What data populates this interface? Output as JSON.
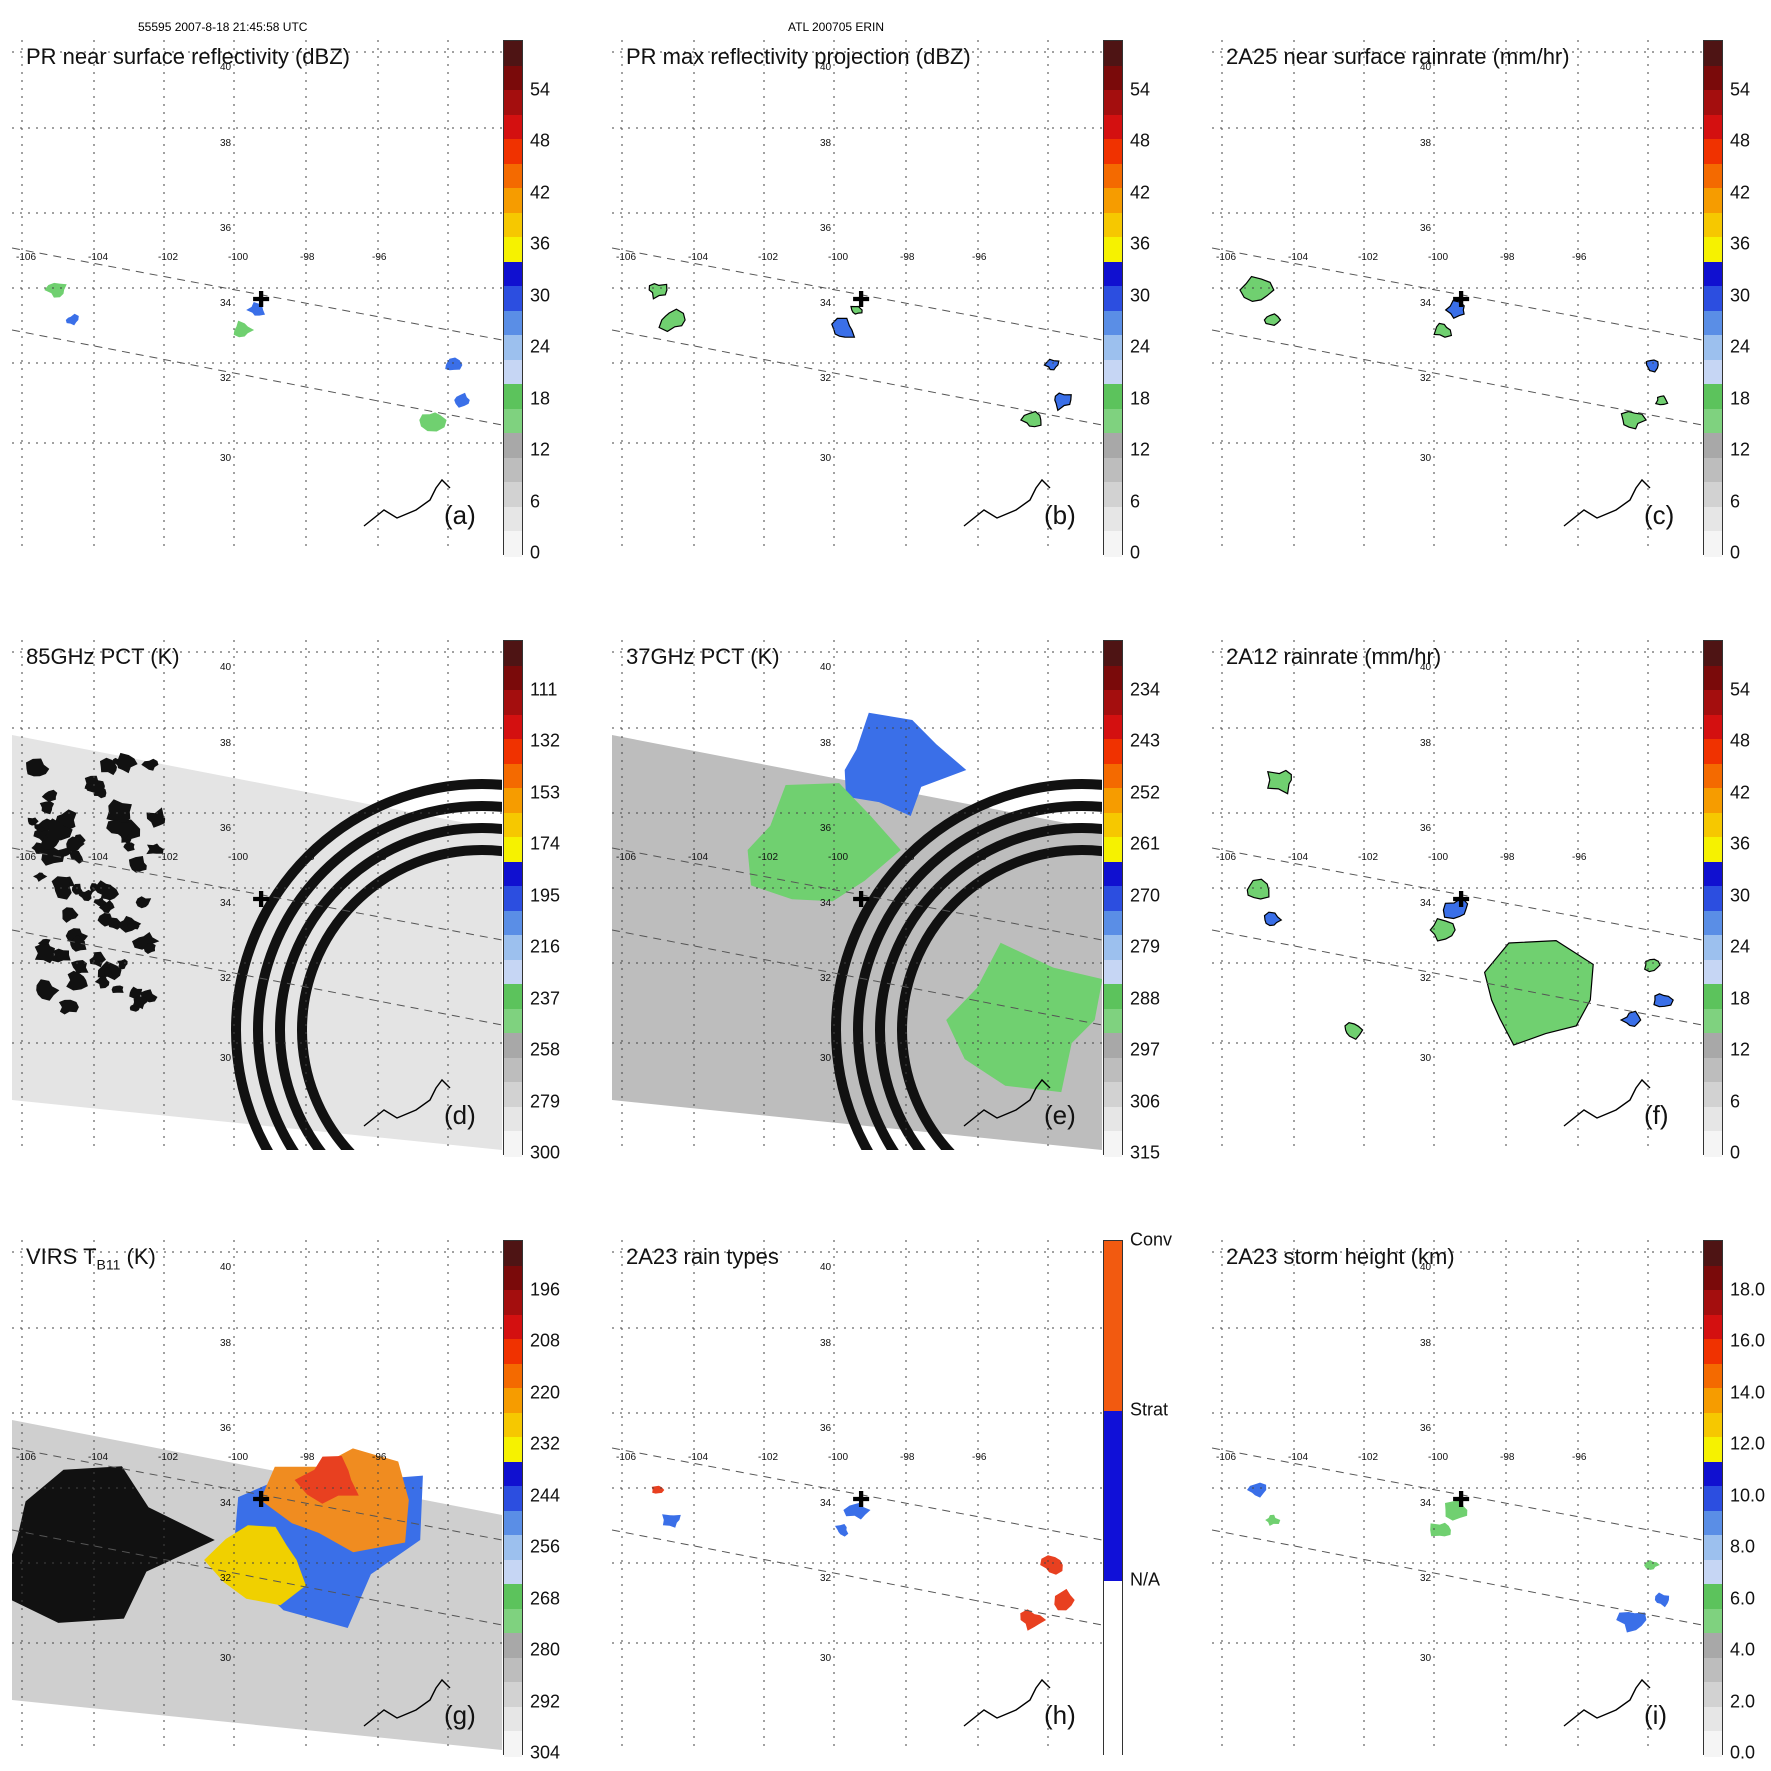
{
  "header": {
    "left": "55595 2007-8-18 21:45:58 UTC",
    "center": "ATL 200705 ERIN"
  },
  "colors": {
    "scale": [
      "#f5f5f5",
      "#e6e6e6",
      "#d2d2d2",
      "#bdbdbd",
      "#a8a8a8",
      "#7fd27f",
      "#5cc35c",
      "#c6d6f4",
      "#9cc0ee",
      "#5a8ee6",
      "#2c4ee0",
      "#1010d0",
      "#f6f200",
      "#f6c800",
      "#f69c00",
      "#f46a00",
      "#f03200",
      "#d41010",
      "#a40e0e",
      "#7a0a0a",
      "#4e1414"
    ],
    "rain_types": [
      "#ffffff",
      "#1010d8",
      "#f25a10"
    ],
    "field_blue": "#3a6fe8",
    "field_green": "#70d070",
    "field_red": "#e84020",
    "field_yellow": "#f0d000",
    "field_orange": "#f08c20",
    "field_gray": "#c4c4c4",
    "field_dark": "#111111"
  },
  "map": {
    "lat_labels": [
      {
        "v": "40"
      },
      {
        "v": "38"
      },
      {
        "v": "36"
      },
      {
        "v": "34"
      },
      {
        "v": "32"
      },
      {
        "v": "30"
      }
    ],
    "lon_labels": [
      "-106",
      "-104",
      "-102",
      "-100",
      "-98",
      "-96"
    ]
  },
  "panels": [
    {
      "title": "PR near surface reflectivity (dBZ)",
      "label": "(a)",
      "ticks": [
        "54",
        "48",
        "42",
        "36",
        "30",
        "24",
        "18",
        "12",
        "6",
        "0"
      ],
      "bar": "scale"
    },
    {
      "title": "PR max reflectivity projection (dBZ)",
      "label": "(b)",
      "ticks": [
        "54",
        "48",
        "42",
        "36",
        "30",
        "24",
        "18",
        "12",
        "6",
        "0"
      ],
      "bar": "scale"
    },
    {
      "title": "2A25 near surface rainrate (mm/hr)",
      "label": "(c)",
      "ticks": [
        "54",
        "48",
        "42",
        "36",
        "30",
        "24",
        "18",
        "12",
        "6",
        "0"
      ],
      "bar": "scale2"
    },
    {
      "title": "85GHz PCT (K)",
      "label": "(d)",
      "ticks": [
        "111",
        "132",
        "153",
        "174",
        "195",
        "216",
        "237",
        "258",
        "279",
        "300"
      ],
      "bar": "scale"
    },
    {
      "title": "37GHz PCT (K)",
      "label": "(e)",
      "ticks": [
        "234",
        "243",
        "252",
        "261",
        "270",
        "279",
        "288",
        "297",
        "306",
        "315"
      ],
      "bar": "scale"
    },
    {
      "title": "2A12 rainrate (mm/hr)",
      "label": "(f)",
      "ticks": [
        "54",
        "48",
        "42",
        "36",
        "30",
        "24",
        "18",
        "12",
        "6",
        "0"
      ],
      "bar": "scale2"
    },
    {
      "title": "VIRS T",
      "title_sub": "B11",
      "title_tail": " (K)",
      "label": "(g)",
      "ticks": [
        "196",
        "208",
        "220",
        "232",
        "244",
        "256",
        "268",
        "280",
        "292",
        "304"
      ],
      "bar": "scale"
    },
    {
      "title": "2A23 rain types",
      "label": "(h)",
      "ticks": [
        "Conv",
        "Strat",
        "N/A"
      ],
      "bar": "types"
    },
    {
      "title": "2A23 storm height (km)",
      "label": "(i)",
      "ticks": [
        "18.0",
        "16.0",
        "14.0",
        "12.0",
        "10.0",
        "8.0",
        "6.0",
        "4.0",
        "2.0",
        "0.0"
      ],
      "bar": "scale"
    }
  ]
}
